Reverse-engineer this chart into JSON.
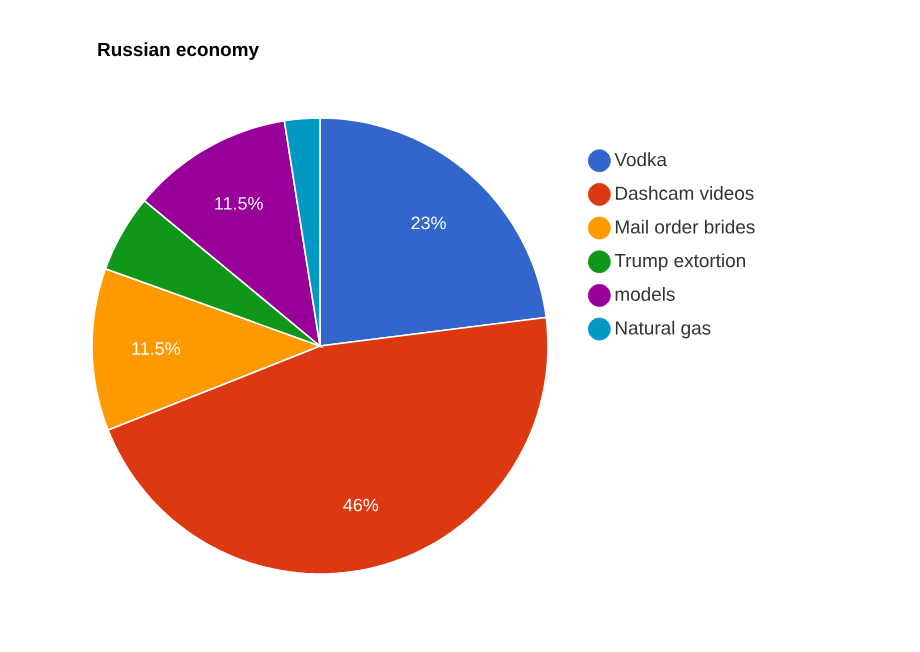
{
  "chart_data": {
    "type": "pie",
    "title": "Russian economy",
    "categories": [
      "Vodka",
      "Dashcam videos",
      "Mail order brides",
      "Trump extortion",
      "models",
      "Natural gas"
    ],
    "values": [
      23,
      46,
      11.5,
      5.5,
      11.5,
      2.5
    ],
    "colors": [
      "#3366cc",
      "#dc3912",
      "#ff9900",
      "#109618",
      "#990099",
      "#0099c6"
    ],
    "value_labels": [
      "23%",
      "46%",
      "11.5%",
      null,
      "11.5%",
      null
    ],
    "legend": "right"
  }
}
